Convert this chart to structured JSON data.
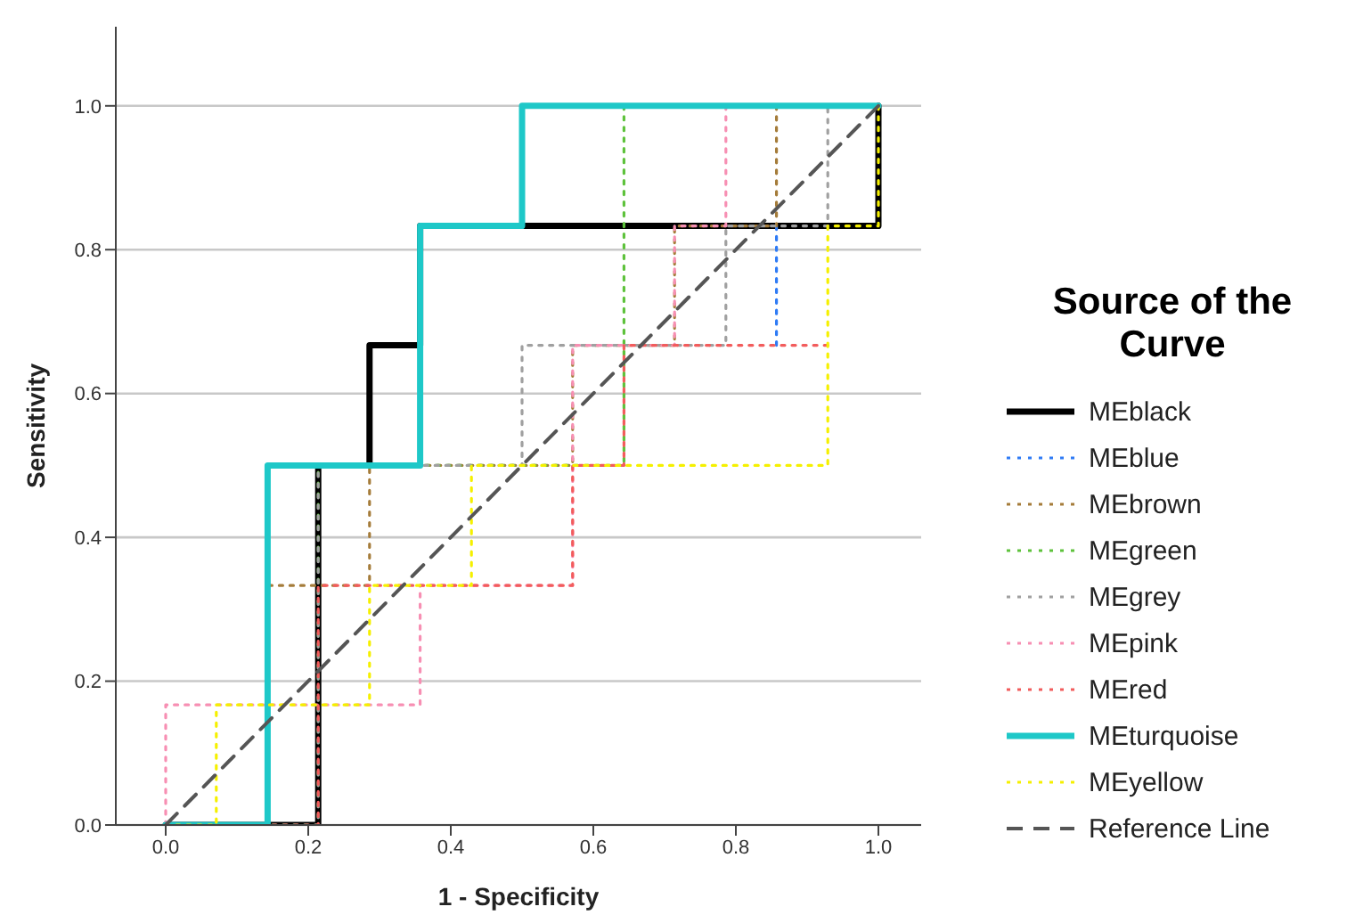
{
  "chart_data": {
    "type": "line",
    "xlabel": "1 - Specificity",
    "ylabel": "Sensitivity",
    "legend_title": "Source of the Curve",
    "legend": "right",
    "grid": "y",
    "xlim": [
      -0.07,
      1.06
    ],
    "ylim": [
      0,
      1.11
    ],
    "xticks": [
      {
        "value": 0,
        "label": "0.0"
      },
      {
        "value": 0.2,
        "label": "0.2"
      },
      {
        "value": 0.4,
        "label": "0.4"
      },
      {
        "value": 0.6,
        "label": "0.6"
      },
      {
        "value": 0.8,
        "label": "0.8"
      },
      {
        "value": 1,
        "label": "1.0"
      }
    ],
    "yticks": [
      {
        "value": 0,
        "label": "0.0"
      },
      {
        "value": 0.2,
        "label": "0.2"
      },
      {
        "value": 0.4,
        "label": "0.4"
      },
      {
        "value": 0.6,
        "label": "0.6"
      },
      {
        "value": 0.8,
        "label": "0.8"
      },
      {
        "value": 1,
        "label": "1.0"
      }
    ],
    "series": [
      {
        "name": "MEblack",
        "color": "#000000",
        "line_style": "solid",
        "x": [
          0,
          0.214,
          0.214,
          0.286,
          0.286,
          0.357,
          0.357,
          1,
          1
        ],
        "values": [
          0,
          0,
          0.5,
          0.5,
          0.667,
          0.667,
          0.833,
          0.833,
          1
        ]
      },
      {
        "name": "MEblue",
        "color": "#2f7bf5",
        "line_style": "dotted",
        "x": [
          0.857,
          0.857
        ],
        "values": [
          0.667,
          0.833
        ]
      },
      {
        "name": "MEbrown",
        "color": "#a57c3a",
        "line_style": "dotted",
        "x": [
          0,
          0.143,
          0.143,
          0.286,
          0.286,
          0.571,
          0.571,
          0.714,
          0.714,
          0.857,
          0.857
        ],
        "values": [
          0,
          0,
          0.333,
          0.333,
          0.5,
          0.5,
          0.667,
          0.667,
          0.833,
          0.833,
          1
        ]
      },
      {
        "name": "MEgreen",
        "color": "#5ec23c",
        "line_style": "dotted",
        "x": [
          0,
          0.214,
          0.214,
          0.643,
          0.643
        ],
        "values": [
          0,
          0,
          0.5,
          0.5,
          1
        ]
      },
      {
        "name": "MEgrey",
        "color": "#a0a0a0",
        "line_style": "dotted",
        "x": [
          0,
          0.214,
          0.214,
          0.5,
          0.5,
          0.786,
          0.786,
          0.929,
          0.929,
          1
        ],
        "values": [
          0,
          0,
          0.5,
          0.5,
          0.667,
          0.667,
          0.833,
          0.833,
          1,
          1
        ]
      },
      {
        "name": "MEpink",
        "color": "#f78fb3",
        "line_style": "dotted",
        "x": [
          0,
          0,
          0.357,
          0.357,
          0.571,
          0.571,
          0.714,
          0.714,
          0.786,
          0.786
        ],
        "values": [
          0,
          0.167,
          0.167,
          0.333,
          0.333,
          0.667,
          0.667,
          0.833,
          0.833,
          1
        ]
      },
      {
        "name": "MEred",
        "color": "#f25c5c",
        "line_style": "dotted",
        "x": [
          0,
          0.214,
          0.214,
          0.571,
          0.571,
          0.643,
          0.643,
          0.929
        ],
        "values": [
          0,
          0,
          0.333,
          0.333,
          0.5,
          0.5,
          0.667,
          0.667
        ]
      },
      {
        "name": "MEturquoise",
        "color": "#1ec8c8",
        "line_style": "solid",
        "x": [
          0,
          0.143,
          0.143,
          0.357,
          0.357,
          0.5,
          0.5,
          1
        ],
        "values": [
          0,
          0,
          0.5,
          0.5,
          0.833,
          0.833,
          1,
          1
        ]
      },
      {
        "name": "MEyellow",
        "color": "#f5f000",
        "line_style": "dotted",
        "x": [
          0,
          0.071,
          0.071,
          0.286,
          0.286,
          0.429,
          0.429,
          0.929,
          0.929,
          1,
          1
        ],
        "values": [
          0,
          0,
          0.167,
          0.167,
          0.333,
          0.333,
          0.5,
          0.5,
          0.833,
          0.833,
          1
        ]
      },
      {
        "name": "Reference Line",
        "color": "#555555",
        "line_style": "dashed",
        "x": [
          0,
          1
        ],
        "values": [
          0,
          1
        ]
      }
    ]
  }
}
